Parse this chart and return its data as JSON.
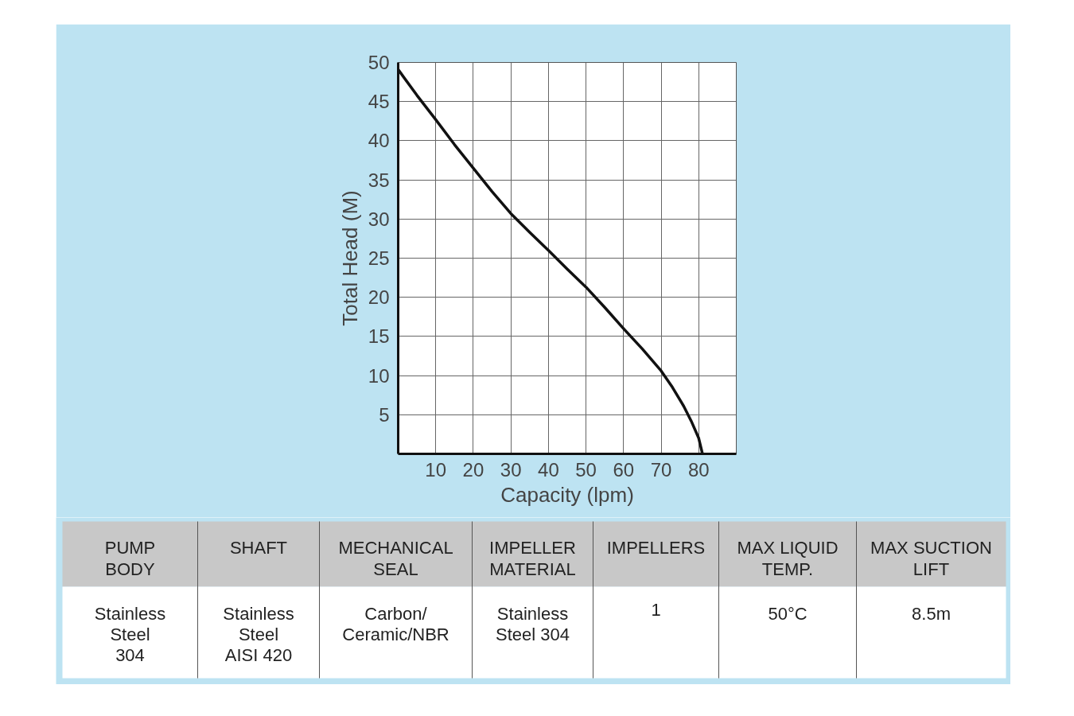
{
  "chart_data": [
    {
      "type": "line",
      "xlabel": "Capacity (lpm)",
      "ylabel": "Total Head (M)",
      "x": [
        0,
        5,
        10,
        15,
        20,
        25,
        30,
        35,
        40,
        45,
        50,
        55,
        60,
        65,
        70,
        73,
        76,
        78,
        80,
        81
      ],
      "series": [
        {
          "color": "#111111",
          "values": [
            49.1,
            45.8,
            42.7,
            39.5,
            36.5,
            33.5,
            30.7,
            28.3,
            26,
            23.6,
            21.3,
            18.7,
            16,
            13.4,
            10.6,
            8.5,
            6.1,
            4.2,
            2.0,
            0
          ]
        }
      ],
      "xlim": [
        0,
        90
      ],
      "xticks": [
        10,
        20,
        30,
        40,
        50,
        60,
        70,
        80
      ],
      "ylim": [
        0,
        50
      ],
      "yticks": [
        5,
        10,
        15,
        20,
        25,
        30,
        35,
        40,
        45,
        50
      ],
      "grid": true,
      "marker": "none",
      "line_style": "solid"
    },
    {
      "type": "other",
      "annotations": [
        "PUMP\nBODY",
        "SHAFT",
        "MECHANICAL\nSEAL",
        "IMPELLER\nMATERIAL",
        "IMPELLERS",
        "MAX LIQUID\nTEMP.",
        "MAX SUCTION\nLIFT",
        "Stainless\nSteel\n304",
        "Stainless\nSteel\nAISI 420",
        "Carbon/\nCeramic/NBR",
        "Stainless\nSteel 304",
        "1",
        "50°C",
        "8.5m"
      ]
    }
  ]
}
